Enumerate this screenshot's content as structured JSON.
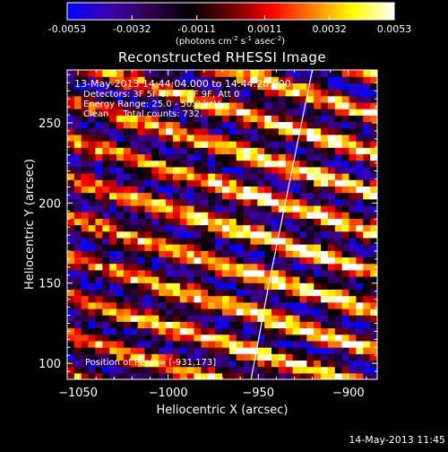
{
  "colorbar": {
    "tick_labels": [
      "-0.0053",
      "-0.0032",
      "-0.0011",
      "0.0011",
      "0.0032",
      "0.0053"
    ],
    "tick_values": [
      -0.0053,
      -0.0032,
      -0.0011,
      0.0011,
      0.0032,
      0.0053
    ],
    "min": -0.0053,
    "max": 0.0053,
    "units_parts": [
      "(photons cm",
      "-2",
      " s",
      "-1",
      " asec",
      "-2",
      ")"
    ],
    "colormap": [
      "#0000ff",
      "#3a00b0",
      "#300050",
      "#000000",
      "#6a0000",
      "#ff0000",
      "#ff8000",
      "#ffff00",
      "#ffffff"
    ]
  },
  "chart_data": {
    "type": "heatmap",
    "title": "Reconstructed RHESSI Image",
    "xlabel": "Heliocentric X (arcsec)",
    "ylabel": "Heliocentric Y (arcsec)",
    "xlim": [
      -1056,
      -884
    ],
    "ylim": [
      90,
      283
    ],
    "xticks": [
      -1050,
      -1000,
      -950,
      -900
    ],
    "xtick_labels": [
      "−1050",
      "−1000",
      "−950",
      "−900"
    ],
    "yticks": [
      100,
      150,
      200,
      250
    ],
    "ytick_labels": [
      "100",
      "150",
      "200",
      "250"
    ],
    "pattern": {
      "grid_cols": 44,
      "grid_rows": 48,
      "stripe_slope_arcsec_per_arcsec": -0.34,
      "stripe_spacing_arcsec": 24.5,
      "stripe_width_arcsec": 4.6,
      "noise_amplitude": 0.0021
    },
    "limb": [
      {
        "x": -954,
        "y": 90
      },
      {
        "x": -944,
        "y": 150
      },
      {
        "x": -935,
        "y": 200
      },
      {
        "x": -920,
        "y": 283
      }
    ],
    "annotations": [
      "13-May-2013 14:44:04.000 to 14:44:20.000",
      "Detectors: 3F 5F 6F 7F 8F 9F, Att 0",
      "Energy Range: 25.0 - 50.0 keV",
      "Clean     Total counts: 732."
    ],
    "peak_label": "Position of Peak = [-931,173]",
    "peak": {
      "x": -931,
      "y": 173
    }
  },
  "footer": {
    "timestamp": "14-May-2013 11:45"
  }
}
